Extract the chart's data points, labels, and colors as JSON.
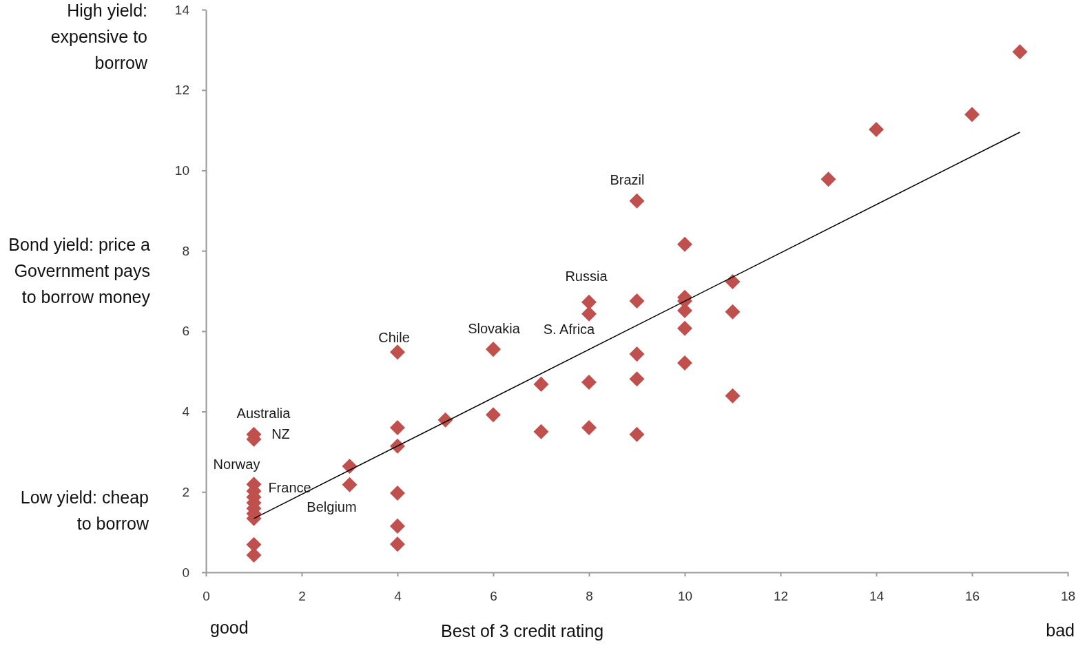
{
  "chart_data": {
    "type": "scatter",
    "xlabel": "Best of 3 credit rating",
    "ylabel": "Bond yield: price a Government pays to borrow money",
    "xlim": [
      0,
      18
    ],
    "xticks": [
      0,
      2,
      4,
      6,
      8,
      10,
      12,
      14,
      16,
      18
    ],
    "ylim": [
      0,
      14
    ],
    "yticks": [
      0,
      2,
      4,
      6,
      8,
      10,
      12,
      14
    ],
    "grid": false,
    "marker": "diamond",
    "series": [
      {
        "color": "#c0504d",
        "x": [
          1,
          1,
          1,
          1,
          1,
          1,
          1,
          1,
          1,
          1,
          1,
          3,
          3,
          4,
          4,
          4,
          4,
          4,
          4,
          5,
          6,
          6,
          7,
          7,
          8,
          8,
          8,
          8,
          9,
          9,
          9,
          9,
          9,
          10,
          10,
          10,
          10,
          10,
          10,
          11,
          11,
          11,
          13,
          14,
          16,
          17
        ],
        "values": [
          3.43,
          3.31,
          2.19,
          2.02,
          1.87,
          1.73,
          1.59,
          1.46,
          1.34,
          0.69,
          0.43,
          2.64,
          2.18,
          5.48,
          3.6,
          3.14,
          1.97,
          1.15,
          0.7,
          3.79,
          5.55,
          3.92,
          4.68,
          3.5,
          6.72,
          6.43,
          4.73,
          3.6,
          9.24,
          6.75,
          5.43,
          4.81,
          3.43,
          8.16,
          6.84,
          6.75,
          6.51,
          6.07,
          5.21,
          7.23,
          6.48,
          4.39,
          9.78,
          11.02,
          11.39,
          12.95
        ]
      },
      {
        "type": "line",
        "color": "#000000",
        "marker": "none",
        "x": [
          1,
          17
        ],
        "values": [
          1.34,
          10.95
        ]
      }
    ],
    "annotations": [
      {
        "text": "Australia",
        "x": 1,
        "y": 3.43
      },
      {
        "text": "NZ",
        "x": 1,
        "y": 3.31
      },
      {
        "text": "Norway",
        "x": 1,
        "y": 2.19
      },
      {
        "text": "France",
        "x": 1,
        "y": 2.02
      },
      {
        "text": "Belgium",
        "x": 3,
        "y": 2.18
      },
      {
        "text": "Chile",
        "x": 4,
        "y": 5.48
      },
      {
        "text": "Slovakia",
        "x": 6,
        "y": 5.55
      },
      {
        "text": "S. Africa",
        "x": 8,
        "y": 6.43
      },
      {
        "text": "Russia",
        "x": 8,
        "y": 6.72
      },
      {
        "text": "Brazil",
        "x": 9,
        "y": 9.24
      },
      "High yield: expensive to borrow",
      "Low yield: cheap to borrow",
      "good",
      "bad"
    ]
  }
}
